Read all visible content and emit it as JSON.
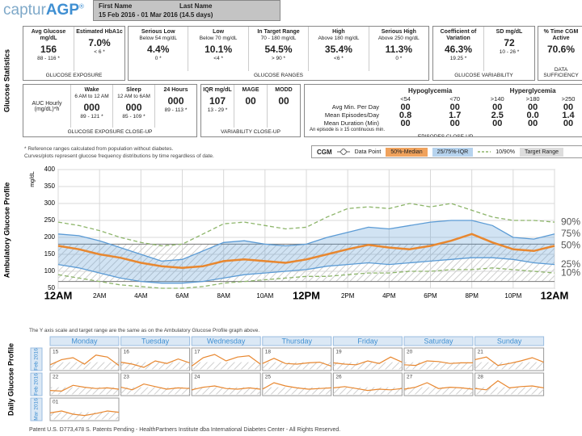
{
  "header": {
    "logo_prefix": "captur",
    "logo_main": "AGP",
    "logo_mark": "®",
    "first_name_label": "First Name",
    "last_name_label": "Last Name",
    "date_range": "15 Feb 2016 - 01 Mar 2016 (14.5 days)"
  },
  "glucose_statistics": {
    "label": "Glucose Statistics",
    "groups": [
      {
        "footer": "GLUCOSE EXPOSURE",
        "columns": [
          {
            "title": "Avg Glucose mg/dL",
            "value": "156",
            "reference": "88 - 116 *"
          },
          {
            "title": "Estimated HbA1c",
            "value": "7.0%",
            "reference": "< 6 *"
          }
        ]
      },
      {
        "footer": "GLUCOSE RANGES",
        "columns": [
          {
            "title": "Serious Low",
            "subtitle": "Below 54 mg/dL",
            "value": "4.4%",
            "reference": "0 *"
          },
          {
            "title": "Low",
            "subtitle": "Below 70 mg/dL",
            "value": "10.1%",
            "reference": "<4 *"
          },
          {
            "title": "In Target Range",
            "subtitle": "70 - 180 mg/dL",
            "value": "54.5%",
            "reference": "> 90 *"
          },
          {
            "title": "High",
            "subtitle": "Above 180 mg/dL",
            "value": "35.4%",
            "reference": "<6 *"
          },
          {
            "title": "Serious High",
            "subtitle": "Above 250 mg/dL",
            "value": "11.3%",
            "reference": "0 *"
          }
        ]
      },
      {
        "footer": "GLUCOSE VARIABILITY",
        "columns": [
          {
            "title": "Coefficient of Variation",
            "value": "46.3%",
            "reference": "19.25 *"
          },
          {
            "title": "SD mg/dL",
            "value": "72",
            "reference": "10 - 26 *"
          }
        ]
      },
      {
        "footer": "DATA SUFFICIENCY",
        "columns": [
          {
            "title": "% Time CGM Active",
            "value": "70.6%"
          }
        ]
      }
    ]
  },
  "close_up": {
    "groups": [
      {
        "footer": "GLUCOSE EXPOSURE CLOSE-UP",
        "row_label": "AUC Hourly (mg/dL)*h",
        "columns": [
          {
            "title": "Wake",
            "subtitle": "6 AM to 12 AM",
            "value": "000",
            "reference": "89 - 121 *"
          },
          {
            "title": "Sleep",
            "subtitle": "12 AM to 6AM",
            "value": "000",
            "reference": "85 - 109 *"
          },
          {
            "title": "24 Hours",
            "value": "000",
            "reference": "89 - 113 *"
          }
        ]
      },
      {
        "footer": "VARIABILITY CLOSE-UP",
        "columns": [
          {
            "title": "IQR mg/dL",
            "value": "107",
            "reference": "13 - 29 *"
          },
          {
            "title": "MAGE",
            "value": "00"
          },
          {
            "title": "MODD",
            "value": "00"
          }
        ]
      }
    ],
    "episodes": {
      "footer": "EPISODES CLOSE-UP",
      "groups": [
        {
          "label": "Hypoglycemia",
          "thresholds": [
            "<54",
            "<70"
          ]
        },
        {
          "label": "Hyperglycemia",
          "thresholds": [
            ">140",
            ">180",
            ">250"
          ]
        }
      ],
      "rows": [
        {
          "label": "Avg Min. Per Day",
          "values": [
            "00",
            "00",
            "00",
            "00",
            "00"
          ]
        },
        {
          "label": "Mean Episodes/Day",
          "values": [
            "0.8",
            "1.7",
            "2.5",
            "0.0",
            "1.4"
          ]
        },
        {
          "label": "Mean Duration (Min)",
          "values": [
            "00",
            "00",
            "00",
            "00",
            "00"
          ]
        }
      ],
      "note": "An episode is ≥ 15 continuous min."
    }
  },
  "notes": [
    "* Reference ranges calculated from population without diabetes.",
    "Curves/plots represent glucose frequency distributions by time regardless of date."
  ],
  "chart_data": {
    "type": "line",
    "side_label": "Ambulatory Glucose Profile",
    "ylabel": "mg/dL",
    "legend": {
      "title": "CGM",
      "items": [
        "Data Point",
        "50%-Median",
        "25/75%-IQR",
        "10/90%",
        "Target Range"
      ]
    },
    "x": [
      0,
      1,
      2,
      3,
      4,
      5,
      6,
      7,
      8,
      9,
      10,
      11,
      12,
      13,
      14,
      15,
      16,
      17,
      18,
      19,
      20,
      21,
      22,
      23,
      24
    ],
    "xlim": [
      0,
      24
    ],
    "xticks": [
      {
        "value": 0,
        "label": "12AM"
      },
      {
        "value": 2,
        "label": "2AM"
      },
      {
        "value": 4,
        "label": "4AM"
      },
      {
        "value": 6,
        "label": "6AM"
      },
      {
        "value": 8,
        "label": "8AM"
      },
      {
        "value": 10,
        "label": "10AM"
      },
      {
        "value": 12,
        "label": "12PM"
      },
      {
        "value": 14,
        "label": "2PM"
      },
      {
        "value": 16,
        "label": "4PM"
      },
      {
        "value": 18,
        "label": "6PM"
      },
      {
        "value": 20,
        "label": "8PM"
      },
      {
        "value": 22,
        "label": "10PM"
      },
      {
        "value": 24,
        "label": "12AM"
      }
    ],
    "ylim": [
      50,
      400
    ],
    "yticks": [
      50,
      100,
      150,
      200,
      250,
      300,
      350,
      400
    ],
    "grid": true,
    "target_range": [
      70,
      180
    ],
    "series": [
      {
        "name": "90%",
        "color": "#8db56a",
        "dashed": true,
        "values": [
          245,
          235,
          220,
          200,
          185,
          175,
          180,
          210,
          240,
          245,
          235,
          225,
          230,
          260,
          285,
          290,
          285,
          300,
          290,
          300,
          280,
          260,
          250,
          250,
          245
        ]
      },
      {
        "name": "75%",
        "color": "#5b9bd5",
        "values": [
          210,
          205,
          190,
          170,
          150,
          130,
          135,
          160,
          185,
          190,
          180,
          175,
          180,
          200,
          215,
          230,
          225,
          235,
          245,
          250,
          250,
          235,
          200,
          195,
          210
        ]
      },
      {
        "name": "50%",
        "color": "#e8872f",
        "values": [
          175,
          165,
          150,
          140,
          125,
          115,
          110,
          115,
          130,
          135,
          130,
          125,
          135,
          150,
          165,
          178,
          170,
          165,
          175,
          190,
          210,
          185,
          165,
          160,
          175
        ]
      },
      {
        "name": "25%",
        "color": "#5b9bd5",
        "values": [
          120,
          110,
          95,
          80,
          70,
          65,
          65,
          70,
          80,
          90,
          95,
          100,
          105,
          115,
          120,
          125,
          120,
          125,
          130,
          135,
          140,
          140,
          135,
          125,
          120
        ]
      },
      {
        "name": "10%",
        "color": "#8db56a",
        "dashed": true,
        "values": [
          90,
          80,
          70,
          60,
          55,
          50,
          50,
          55,
          65,
          70,
          75,
          80,
          85,
          85,
          90,
          95,
          95,
          100,
          100,
          105,
          105,
          110,
          105,
          100,
          95
        ]
      }
    ]
  },
  "daily_profile": {
    "side_label": "Daily Glucose Profile",
    "note": "The Y axis scale and target range are the same as on the Ambulatory Glucose Profile graph above.",
    "weekdays": [
      "Monday",
      "Tuesday",
      "Wednesday",
      "Thursday",
      "Friday",
      "Saturday",
      "Sunday"
    ],
    "x": [
      0,
      4,
      8,
      12,
      16,
      20,
      24
    ],
    "color": "#e8872f",
    "weeks": [
      {
        "month": "Feb 2016",
        "days": [
          {
            "date": "15",
            "values": [
              140,
              220,
              250,
              150,
              290,
              260,
              130
            ]
          },
          {
            "date": "16",
            "values": [
              180,
              150,
              100,
              200,
              160,
              230,
              170
            ]
          },
          {
            "date": "17",
            "values": [
              120,
              250,
              300,
              200,
              260,
              280,
              150
            ]
          },
          {
            "date": "18",
            "values": [
              160,
              240,
              160,
              150,
              170,
              180,
              120
            ]
          },
          {
            "date": "19",
            "values": [
              170,
              150,
              140,
              200,
              160,
              260,
              180
            ]
          },
          {
            "date": "20",
            "values": [
              140,
              130,
              200,
              190,
              160,
              170,
              170
            ]
          },
          {
            "date": "21",
            "values": [
              220,
              260,
              130,
              160,
              200,
              250,
              180
            ]
          }
        ]
      },
      {
        "month": "Feb 2016",
        "days": [
          {
            "date": "22",
            "values": [
              130,
              120,
              210,
              180,
              160,
              170,
              150
            ]
          },
          {
            "date": "23",
            "values": [
              180,
              140,
              230,
              190,
              150,
              170,
              160
            ]
          },
          {
            "date": "24",
            "values": [
              140,
              180,
              200,
              160,
              150,
              170,
              150
            ]
          },
          {
            "date": "25",
            "values": [
              150,
              250,
              200,
              170,
              150,
              160,
              170
            ]
          },
          {
            "date": "26",
            "values": [
              170,
              190,
              160,
              130,
              150,
              140,
              160
            ]
          },
          {
            "date": "27",
            "values": [
              150,
              180,
              250,
              160,
              180,
              170,
              150
            ]
          },
          {
            "date": "28",
            "values": [
              160,
              140,
              280,
              170,
              190,
              200,
              170
            ]
          }
        ]
      },
      {
        "month": "Mar 2016",
        "days": [
          {
            "date": "01",
            "values": [
              170,
              200,
              150,
              130,
              160,
              200,
              180
            ]
          }
        ]
      }
    ]
  },
  "footer": "Patent U.S. D773,478 S. Patents Pending -  HealthPartners Institute dba International Diabetes Center - All Rights Reserved."
}
